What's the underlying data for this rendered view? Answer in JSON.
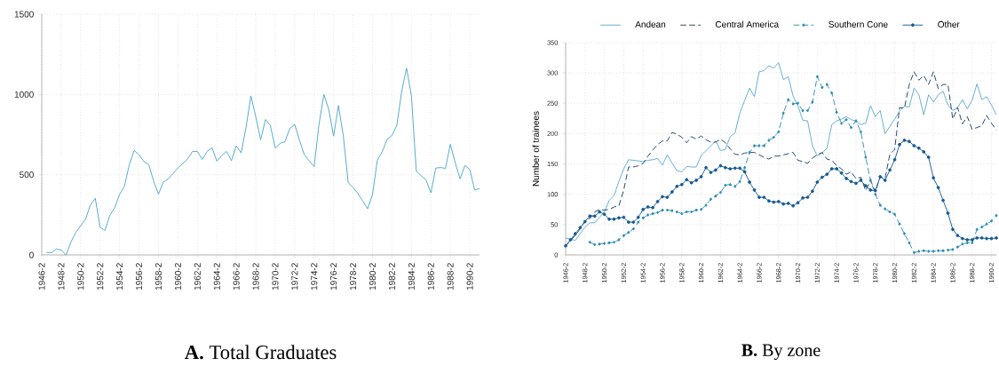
{
  "chart_data": [
    {
      "type": "line",
      "title": "**A.** Total Graduates",
      "color": "#4ea6cc",
      "grid": true,
      "categories": [
        "1946-2",
        null,
        null,
        null,
        "1948-2",
        null,
        null,
        null,
        "1950-2",
        null,
        null,
        null,
        "1952-2",
        null,
        null,
        null,
        "1954-2",
        null,
        null,
        null,
        "1956-2",
        null,
        null,
        null,
        "1958-2",
        null,
        null,
        null,
        "1960-2",
        null,
        null,
        null,
        "1962-2",
        null,
        null,
        null,
        "1964-2",
        null,
        null,
        null,
        "1966-2",
        null,
        null,
        null,
        "1968-2",
        null,
        null,
        null,
        "1970-2",
        null,
        null,
        null,
        "1972-2",
        null,
        null,
        null,
        "1974-2",
        null,
        null,
        null,
        "1976-2",
        null,
        null,
        null,
        "1978-2",
        null,
        null,
        null,
        "1980-2",
        null,
        null,
        null,
        "1982-2",
        null,
        null,
        null,
        "1984-2",
        null,
        null,
        null,
        "1986-2",
        null,
        null,
        null,
        "1988-2",
        null,
        null,
        null,
        "1990-2",
        null,
        null
      ],
      "values": [
        null,
        17,
        13,
        37,
        30,
        0,
        80,
        140,
        182,
        223,
        312,
        353,
        173,
        152,
        247,
        294,
        377,
        428,
        563,
        651,
        625,
        582,
        563,
        461,
        379,
        454,
        474,
        507,
        543,
        569,
        599,
        645,
        645,
        595,
        645,
        669,
        584,
        619,
        645,
        587,
        680,
        636,
        796,
        991,
        861,
        718,
        844,
        807,
        666,
        695,
        706,
        788,
        814,
        712,
        623,
        586,
        550,
        814,
        1000,
        907,
        740,
        931,
        740,
        452,
        420,
        383,
        335,
        288,
        376,
        591,
        643,
        721,
        744,
        807,
        1019,
        1164,
        991,
        522,
        494,
        467,
        387,
        541,
        545,
        539,
        690,
        576,
        474,
        558,
        532,
        405,
        413
      ],
      "ylim": [
        0,
        1500
      ],
      "yticks": [
        0,
        500,
        1000,
        1500
      ]
    },
    {
      "type": "line",
      "title": "**B.** By zone",
      "ylabel": "Number of trainees",
      "grid": true,
      "legend": "top",
      "categories": [
        "1946-2",
        null,
        null,
        null,
        "1948-2",
        null,
        null,
        null,
        "1950-2",
        null,
        null,
        null,
        "1952-2",
        null,
        null,
        null,
        "1954-2",
        null,
        null,
        null,
        "1956-2",
        null,
        null,
        null,
        "1958-2",
        null,
        null,
        null,
        "1960-2",
        null,
        null,
        null,
        "1962-2",
        null,
        null,
        null,
        "1964-2",
        null,
        null,
        null,
        "1966-2",
        null,
        null,
        null,
        "1968-2",
        null,
        null,
        null,
        "1970-2",
        null,
        null,
        null,
        "1972-2",
        null,
        null,
        null,
        "1974-2",
        null,
        null,
        null,
        "1976-2",
        null,
        null,
        null,
        "1978-2",
        null,
        null,
        null,
        "1980-2",
        null,
        null,
        null,
        "1982-2",
        null,
        null,
        null,
        "1984-2",
        null,
        null,
        null,
        "1986-2",
        null,
        null,
        null,
        "1988-2",
        null,
        null,
        null,
        "1990-2",
        null
      ],
      "series": [
        {
          "name": "Andean",
          "color": "#5aaad0",
          "line_style": "solid",
          "marker": "none",
          "values": [
            28,
            26,
            24,
            35,
            46,
            53,
            53,
            62,
            71,
            90,
            98,
            121,
            142,
            157,
            156,
            155,
            154,
            156,
            157,
            159,
            148,
            165,
            151,
            139,
            137,
            146,
            145,
            145,
            164,
            172,
            180,
            188,
            172,
            174,
            195,
            201,
            234,
            255,
            275,
            261,
            302,
            304,
            312,
            308,
            317,
            289,
            294,
            262,
            246,
            222,
            221,
            180,
            163,
            168,
            176,
            215,
            221,
            224,
            228,
            223,
            221,
            215,
            217,
            246,
            228,
            238,
            200,
            212,
            224,
            237,
            245,
            244,
            275,
            264,
            231,
            264,
            252,
            264,
            270,
            247,
            238,
            243,
            256,
            241,
            255,
            282,
            256,
            261,
            247,
            231
          ]
        },
        {
          "name": "Central America",
          "color": "#17406b",
          "line_style": "dashed",
          "marker": "none",
          "values": [
            15,
            24,
            32,
            43,
            56,
            60,
            71,
            75,
            74,
            75,
            79,
            81,
            107,
            145,
            145,
            147,
            151,
            163,
            173,
            182,
            188,
            188,
            202,
            199,
            194,
            185,
            195,
            191,
            196,
            190,
            186,
            186,
            191,
            185,
            175,
            166,
            165,
            168,
            169,
            169,
            165,
            161,
            158,
            163,
            163,
            165,
            167,
            169,
            156,
            154,
            151,
            160,
            165,
            169,
            158,
            156,
            147,
            142,
            133,
            137,
            126,
            128,
            106,
            123,
            104,
            129,
            126,
            166,
            174,
            243,
            242,
            281,
            302,
            288,
            296,
            281,
            302,
            274,
            281,
            281,
            224,
            243,
            216,
            228,
            207,
            210,
            213,
            230,
            217,
            206
          ]
        },
        {
          "name": "Southern Cone",
          "color": "#2b8cb3",
          "line_style": "dashed",
          "marker": "diamond",
          "values": [
            null,
            null,
            null,
            null,
            null,
            21,
            17,
            18,
            19,
            20,
            21,
            25,
            32,
            37,
            43,
            54,
            61,
            66,
            68,
            70,
            74,
            74,
            73,
            71,
            68,
            71,
            71,
            74,
            75,
            82,
            92,
            97,
            103,
            115,
            116,
            113,
            121,
            144,
            169,
            180,
            180,
            180,
            189,
            194,
            203,
            234,
            256,
            249,
            250,
            238,
            238,
            252,
            294,
            276,
            281,
            267,
            235,
            217,
            223,
            210,
            221,
            203,
            161,
            123,
            100,
            82,
            76,
            71,
            67,
            51,
            35,
            20,
            4,
            6,
            7,
            6,
            6,
            7,
            7,
            8,
            9,
            13,
            18,
            20,
            20,
            42,
            46,
            51,
            56,
            65
          ]
        },
        {
          "name": "Other",
          "color": "#175a92",
          "line_style": "solid",
          "marker": "circle",
          "values": [
            15,
            25,
            35,
            45,
            55,
            64,
            64,
            71,
            67,
            59,
            59,
            61,
            62,
            54,
            54,
            62,
            75,
            79,
            78,
            88,
            96,
            95,
            104,
            113,
            116,
            124,
            119,
            123,
            129,
            144,
            136,
            140,
            147,
            144,
            142,
            143,
            143,
            137,
            120,
            107,
            95,
            95,
            89,
            87,
            88,
            84,
            85,
            81,
            86,
            94,
            95,
            105,
            120,
            128,
            133,
            142,
            142,
            135,
            126,
            121,
            118,
            123,
            114,
            107,
            106,
            129,
            123,
            140,
            157,
            182,
            189,
            187,
            180,
            176,
            170,
            161,
            127,
            111,
            90,
            69,
            42,
            32,
            27,
            25,
            25,
            28,
            28,
            27,
            27,
            28
          ]
        }
      ],
      "ylim": [
        0,
        350
      ],
      "yticks": [
        0,
        50,
        100,
        150,
        200,
        250,
        300,
        350
      ]
    }
  ]
}
